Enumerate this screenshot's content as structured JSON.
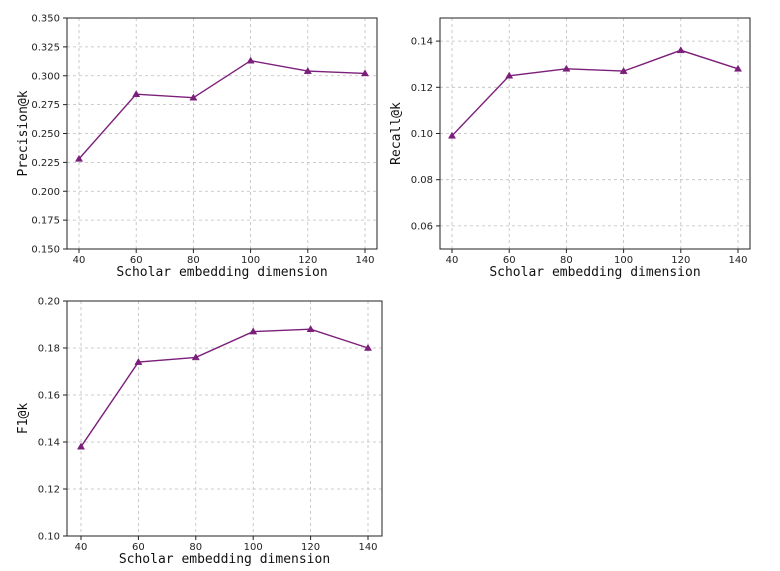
{
  "chart_data": [
    {
      "type": "line",
      "xlabel": "Scholar embedding dimension",
      "ylabel": "Precision@k",
      "x": [
        40,
        60,
        80,
        100,
        120,
        140
      ],
      "xticks": [
        "40",
        "60",
        "80",
        "100",
        "120",
        "140"
      ],
      "yticks": [
        "0.150",
        "0.175",
        "0.200",
        "0.225",
        "0.250",
        "0.275",
        "0.300",
        "0.325",
        "0.350"
      ],
      "ylim": [
        0.15,
        0.35
      ],
      "series": [
        {
          "values": [
            0.228,
            0.284,
            0.281,
            0.313,
            0.304,
            0.302
          ]
        }
      ],
      "color": "#7b1f7a",
      "marker": "triangle",
      "grid": true
    },
    {
      "type": "line",
      "xlabel": "Scholar embedding dimension",
      "ylabel": "Recall@k",
      "x": [
        40,
        60,
        80,
        100,
        120,
        140
      ],
      "xticks": [
        "40",
        "60",
        "80",
        "100",
        "120",
        "140"
      ],
      "yticks": [
        "0.06",
        "0.08",
        "0.10",
        "0.12",
        "0.14"
      ],
      "ylim": [
        0.05,
        0.15
      ],
      "series": [
        {
          "values": [
            0.099,
            0.125,
            0.128,
            0.127,
            0.136,
            0.128
          ]
        }
      ],
      "color": "#7b1f7a",
      "marker": "triangle",
      "grid": true
    },
    {
      "type": "line",
      "xlabel": "Scholar embedding dimension",
      "ylabel": "F1@k",
      "x": [
        40,
        60,
        80,
        100,
        120,
        140
      ],
      "xticks": [
        "40",
        "60",
        "80",
        "100",
        "120",
        "140"
      ],
      "yticks": [
        "0.10",
        "0.12",
        "0.14",
        "0.16",
        "0.18",
        "0.20"
      ],
      "ylim": [
        0.1,
        0.2
      ],
      "series": [
        {
          "values": [
            0.138,
            0.174,
            0.176,
            0.187,
            0.188,
            0.18
          ]
        }
      ],
      "color": "#7b1f7a",
      "marker": "triangle",
      "grid": true
    }
  ]
}
